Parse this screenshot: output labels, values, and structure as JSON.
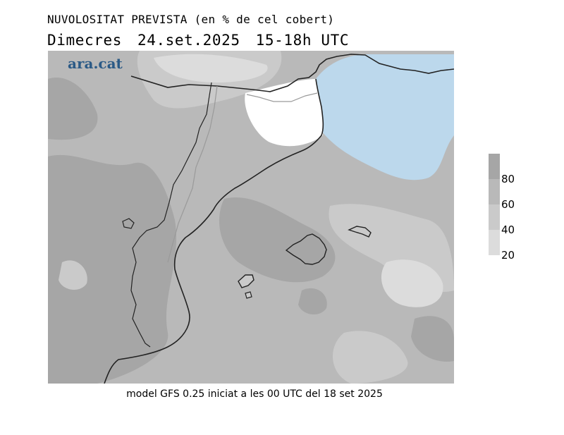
{
  "header": {
    "title": "NUVOLOSITAT PREVISTA (en % de cel cobert)",
    "day": "Dimecres",
    "date": "24.set.2025",
    "time_range": "15-18h UTC"
  },
  "map": {
    "logo": "ara.cat",
    "colors": {
      "sea_clear": "#bcd8ec",
      "land_clear": "#ffffff",
      "coast": "#222222",
      "border": "#9a9a9a"
    }
  },
  "legend": {
    "bins": [
      {
        "label": "80",
        "color": "#a6a6a6"
      },
      {
        "label": "60",
        "color": "#b9b9b9"
      },
      {
        "label": "40",
        "color": "#cacaca"
      },
      {
        "label": "20",
        "color": "#dcdcdc"
      }
    ]
  },
  "footer": {
    "source": "model GFS 0.25 iniciat a les 00 UTC del 18 set 2025"
  }
}
